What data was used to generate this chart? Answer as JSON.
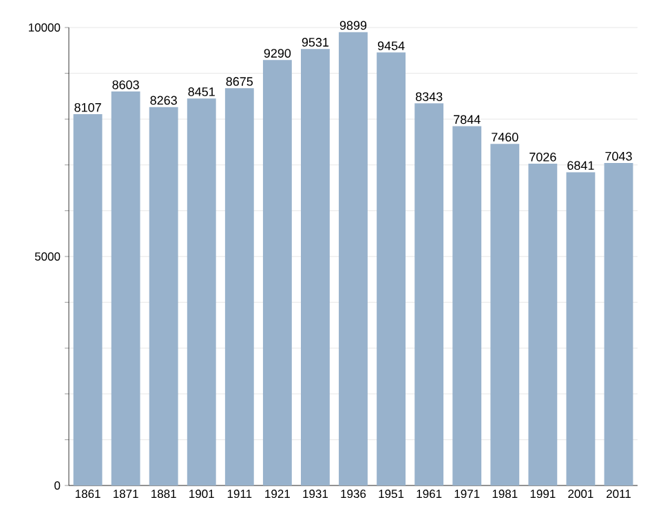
{
  "chart_data": {
    "type": "bar",
    "categories": [
      "1861",
      "1871",
      "1881",
      "1901",
      "1911",
      "1921",
      "1931",
      "1936",
      "1951",
      "1961",
      "1971",
      "1981",
      "1991",
      "2001",
      "2011"
    ],
    "values": [
      8107,
      8603,
      8263,
      8451,
      8675,
      9290,
      9531,
      9899,
      9454,
      8343,
      7844,
      7460,
      7026,
      6841,
      7043
    ],
    "color": "#98b2cc",
    "ylim": [
      0,
      10000
    ],
    "yticks": [
      0,
      {
        "value": 1000,
        "label": null
      },
      {
        "value": 2000,
        "label": null
      },
      {
        "value": 3000,
        "label": null
      },
      {
        "value": 4000,
        "label": null
      },
      5000,
      {
        "value": 6000,
        "label": null
      },
      {
        "value": 7000,
        "label": null
      },
      {
        "value": 8000,
        "label": null
      },
      {
        "value": 9000,
        "label": null
      },
      10000
    ],
    "grid": "y",
    "data_labels": true
  }
}
